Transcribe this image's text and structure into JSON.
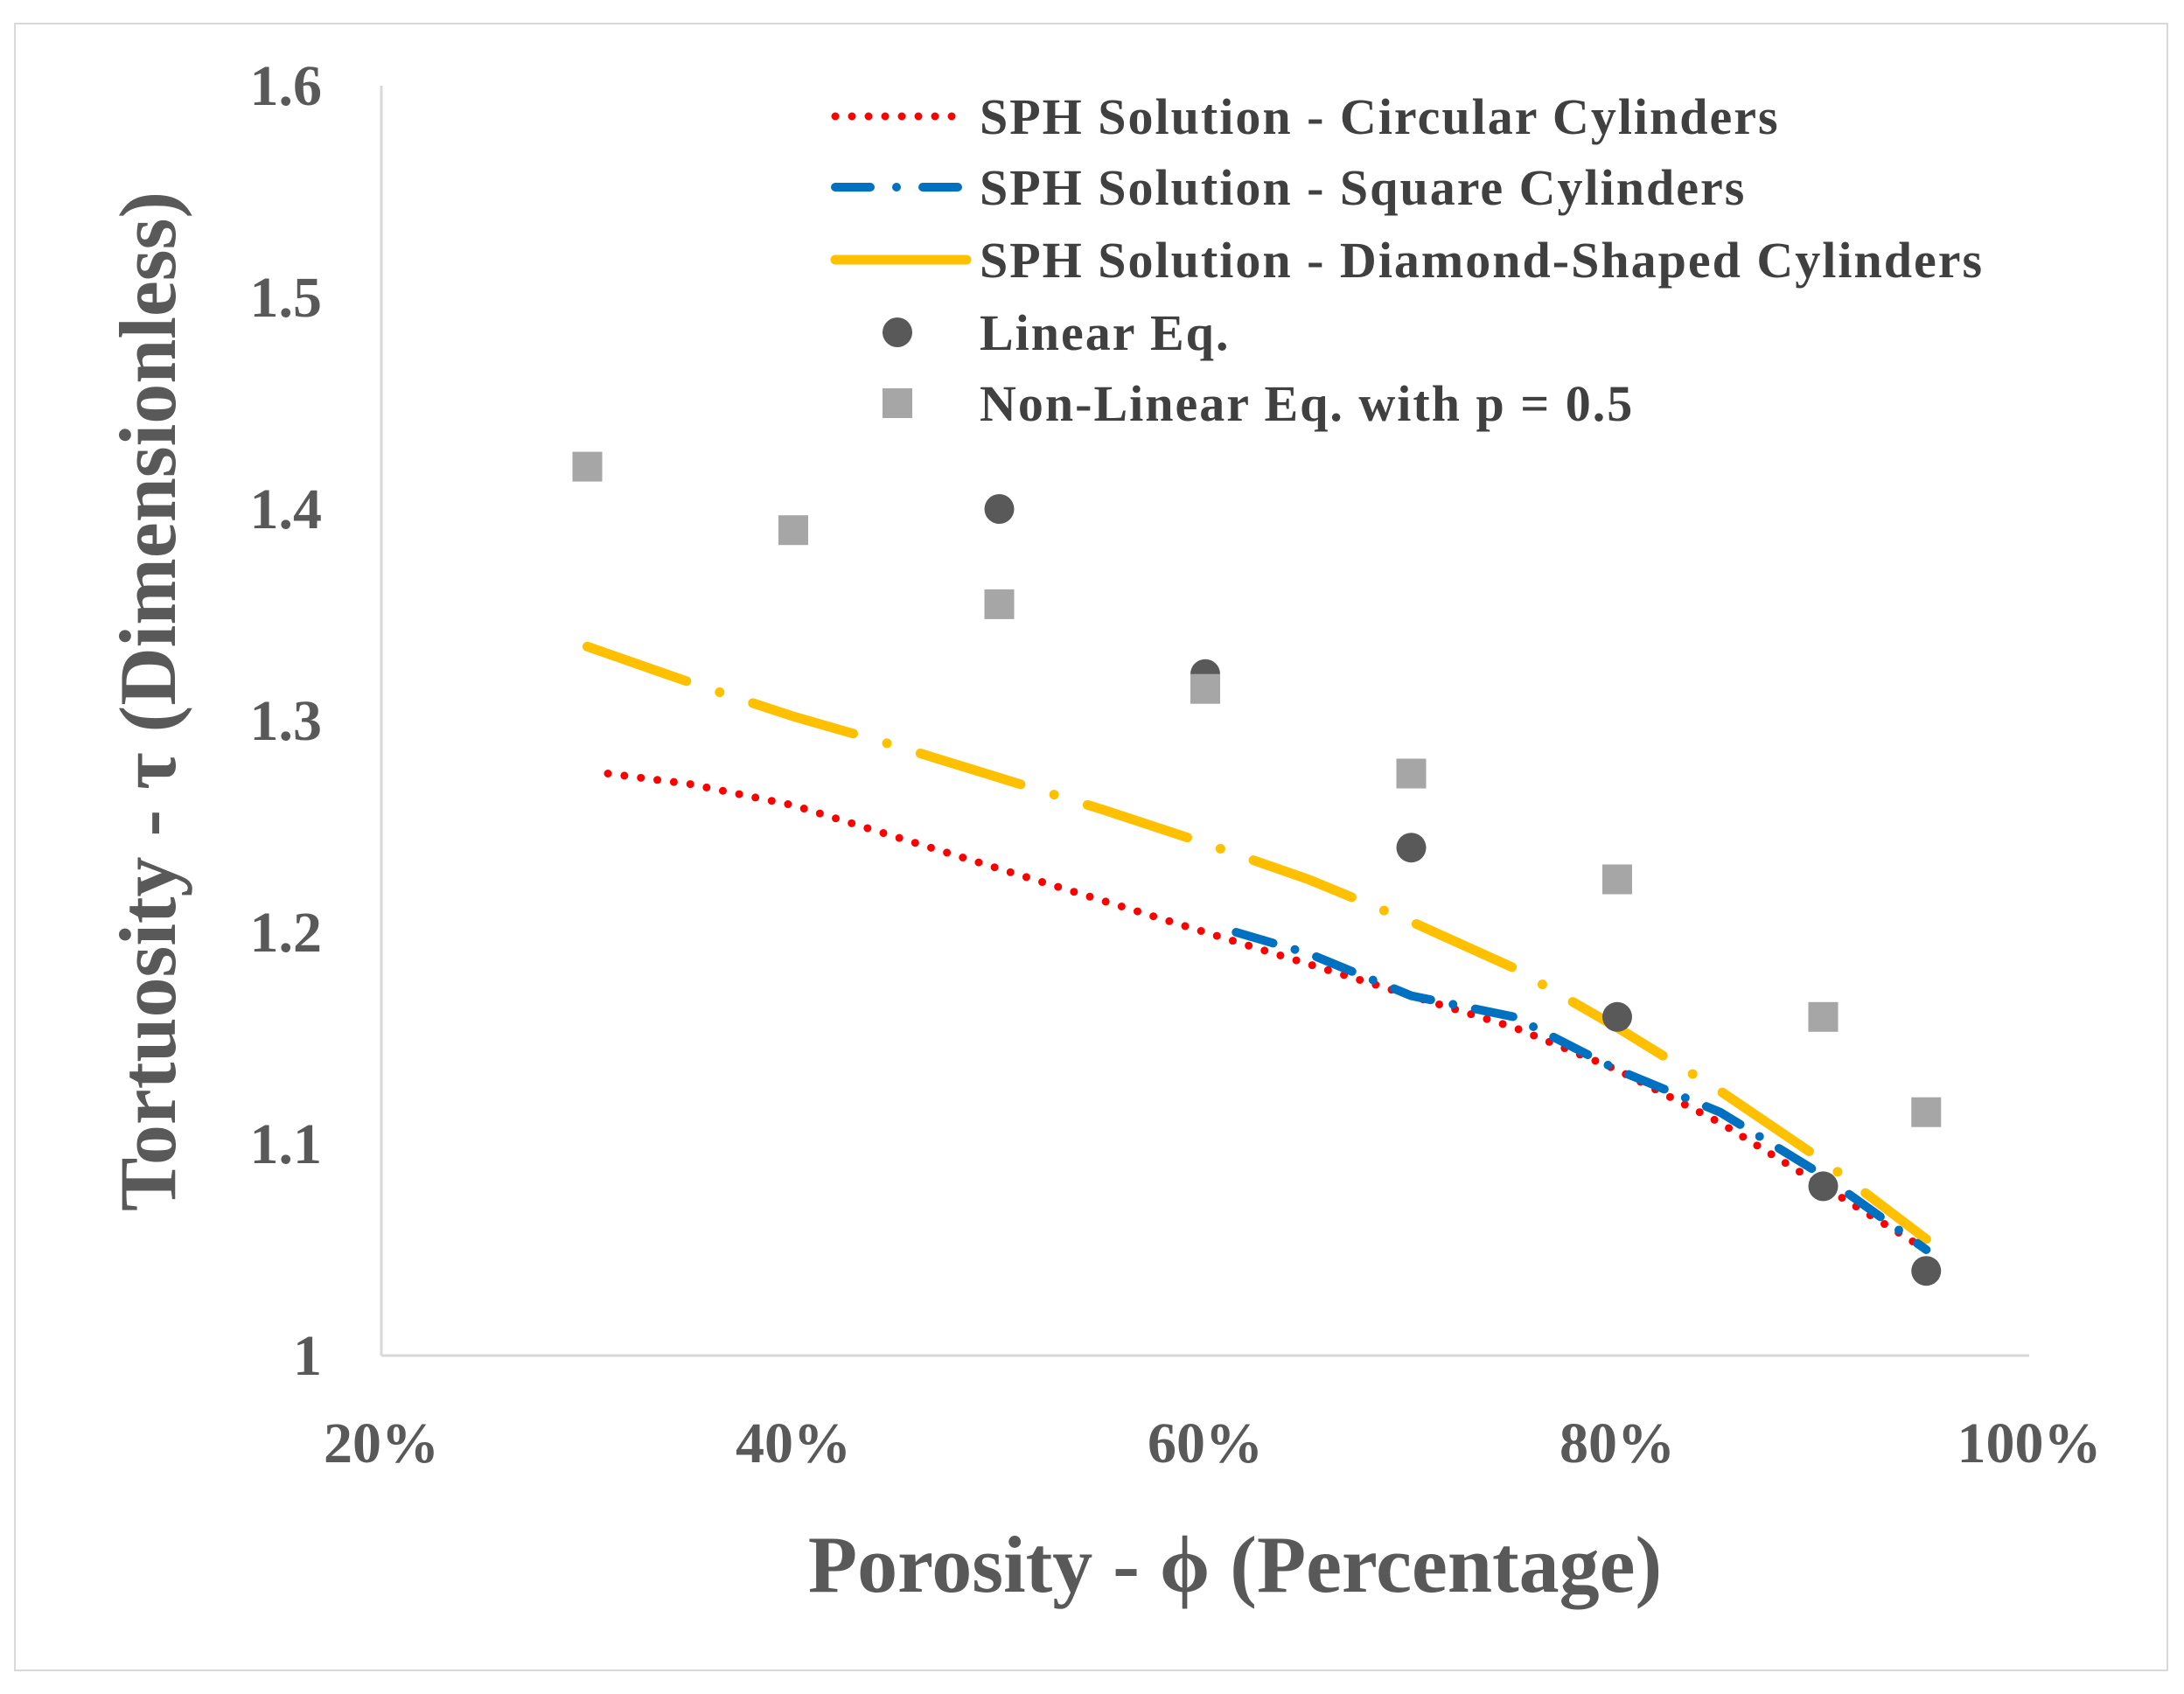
{
  "chart_data": {
    "type": "scatter",
    "title": "",
    "xlabel": "Porosity - ϕ (Percentage)",
    "ylabel": "Tortuosity - τ (Dimensionless)",
    "xlim": [
      0.2,
      1.0
    ],
    "ylim": [
      1.0,
      1.6
    ],
    "x_ticks": [
      0.2,
      0.4,
      0.6,
      0.8,
      1.0
    ],
    "x_tick_labels": [
      "20%",
      "40%",
      "60%",
      "80%",
      "100%"
    ],
    "y_ticks": [
      1.0,
      1.1,
      1.2,
      1.3,
      1.4,
      1.5,
      1.6
    ],
    "y_tick_labels": [
      "1",
      "1.1",
      "1.2",
      "1.3",
      "1.4",
      "1.5",
      "1.6"
    ],
    "legend_position": "top-right",
    "series": [
      {
        "name": "SPH Solution - Circular Cylinders",
        "style": "dotted",
        "color": "#ff0000",
        "x": [
          0.31,
          0.35,
          0.4,
          0.45,
          0.5,
          0.55,
          0.6,
          0.65,
          0.7,
          0.75,
          0.8,
          0.85,
          0.9,
          0.95
        ],
        "y": [
          1.275,
          1.27,
          1.26,
          1.245,
          1.23,
          1.215,
          1.2,
          1.185,
          1.17,
          1.155,
          1.135,
          1.11,
          1.08,
          1.05
        ]
      },
      {
        "name": "SPH Solution - Square Cylinders",
        "style": "dash-dot",
        "color": "#0070c0",
        "x": [
          0.615,
          0.65,
          0.7,
          0.75,
          0.8,
          0.85,
          0.9,
          0.95
        ],
        "y": [
          1.2,
          1.19,
          1.17,
          1.16,
          1.135,
          1.115,
          1.085,
          1.05
        ]
      },
      {
        "name": "SPH Solution - Diamond-Shaped Cylinders",
        "style": "long-dash-dot",
        "color": "#ffc000",
        "x": [
          0.3,
          0.35,
          0.4,
          0.45,
          0.5,
          0.55,
          0.6,
          0.65,
          0.7,
          0.75,
          0.8,
          0.85,
          0.9,
          0.95
        ],
        "y": [
          1.335,
          1.318,
          1.302,
          1.288,
          1.273,
          1.258,
          1.242,
          1.225,
          1.205,
          1.183,
          1.155,
          1.125,
          1.092,
          1.055
        ]
      },
      {
        "name": "Linear Eq.",
        "style": "marker-circle",
        "color": "#595959",
        "x": [
          0.5,
          0.6,
          0.7,
          0.8,
          0.9,
          0.95
        ],
        "y": [
          1.4,
          1.322,
          1.24,
          1.16,
          1.08,
          1.04
        ]
      },
      {
        "name": "Non-Linear Eq. with p = 0.5",
        "style": "marker-square",
        "color": "#a6a6a6",
        "x": [
          0.3,
          0.4,
          0.5,
          0.6,
          0.7,
          0.8,
          0.9,
          0.95
        ],
        "y": [
          1.42,
          1.39,
          1.355,
          1.315,
          1.275,
          1.225,
          1.16,
          1.115
        ]
      }
    ]
  }
}
